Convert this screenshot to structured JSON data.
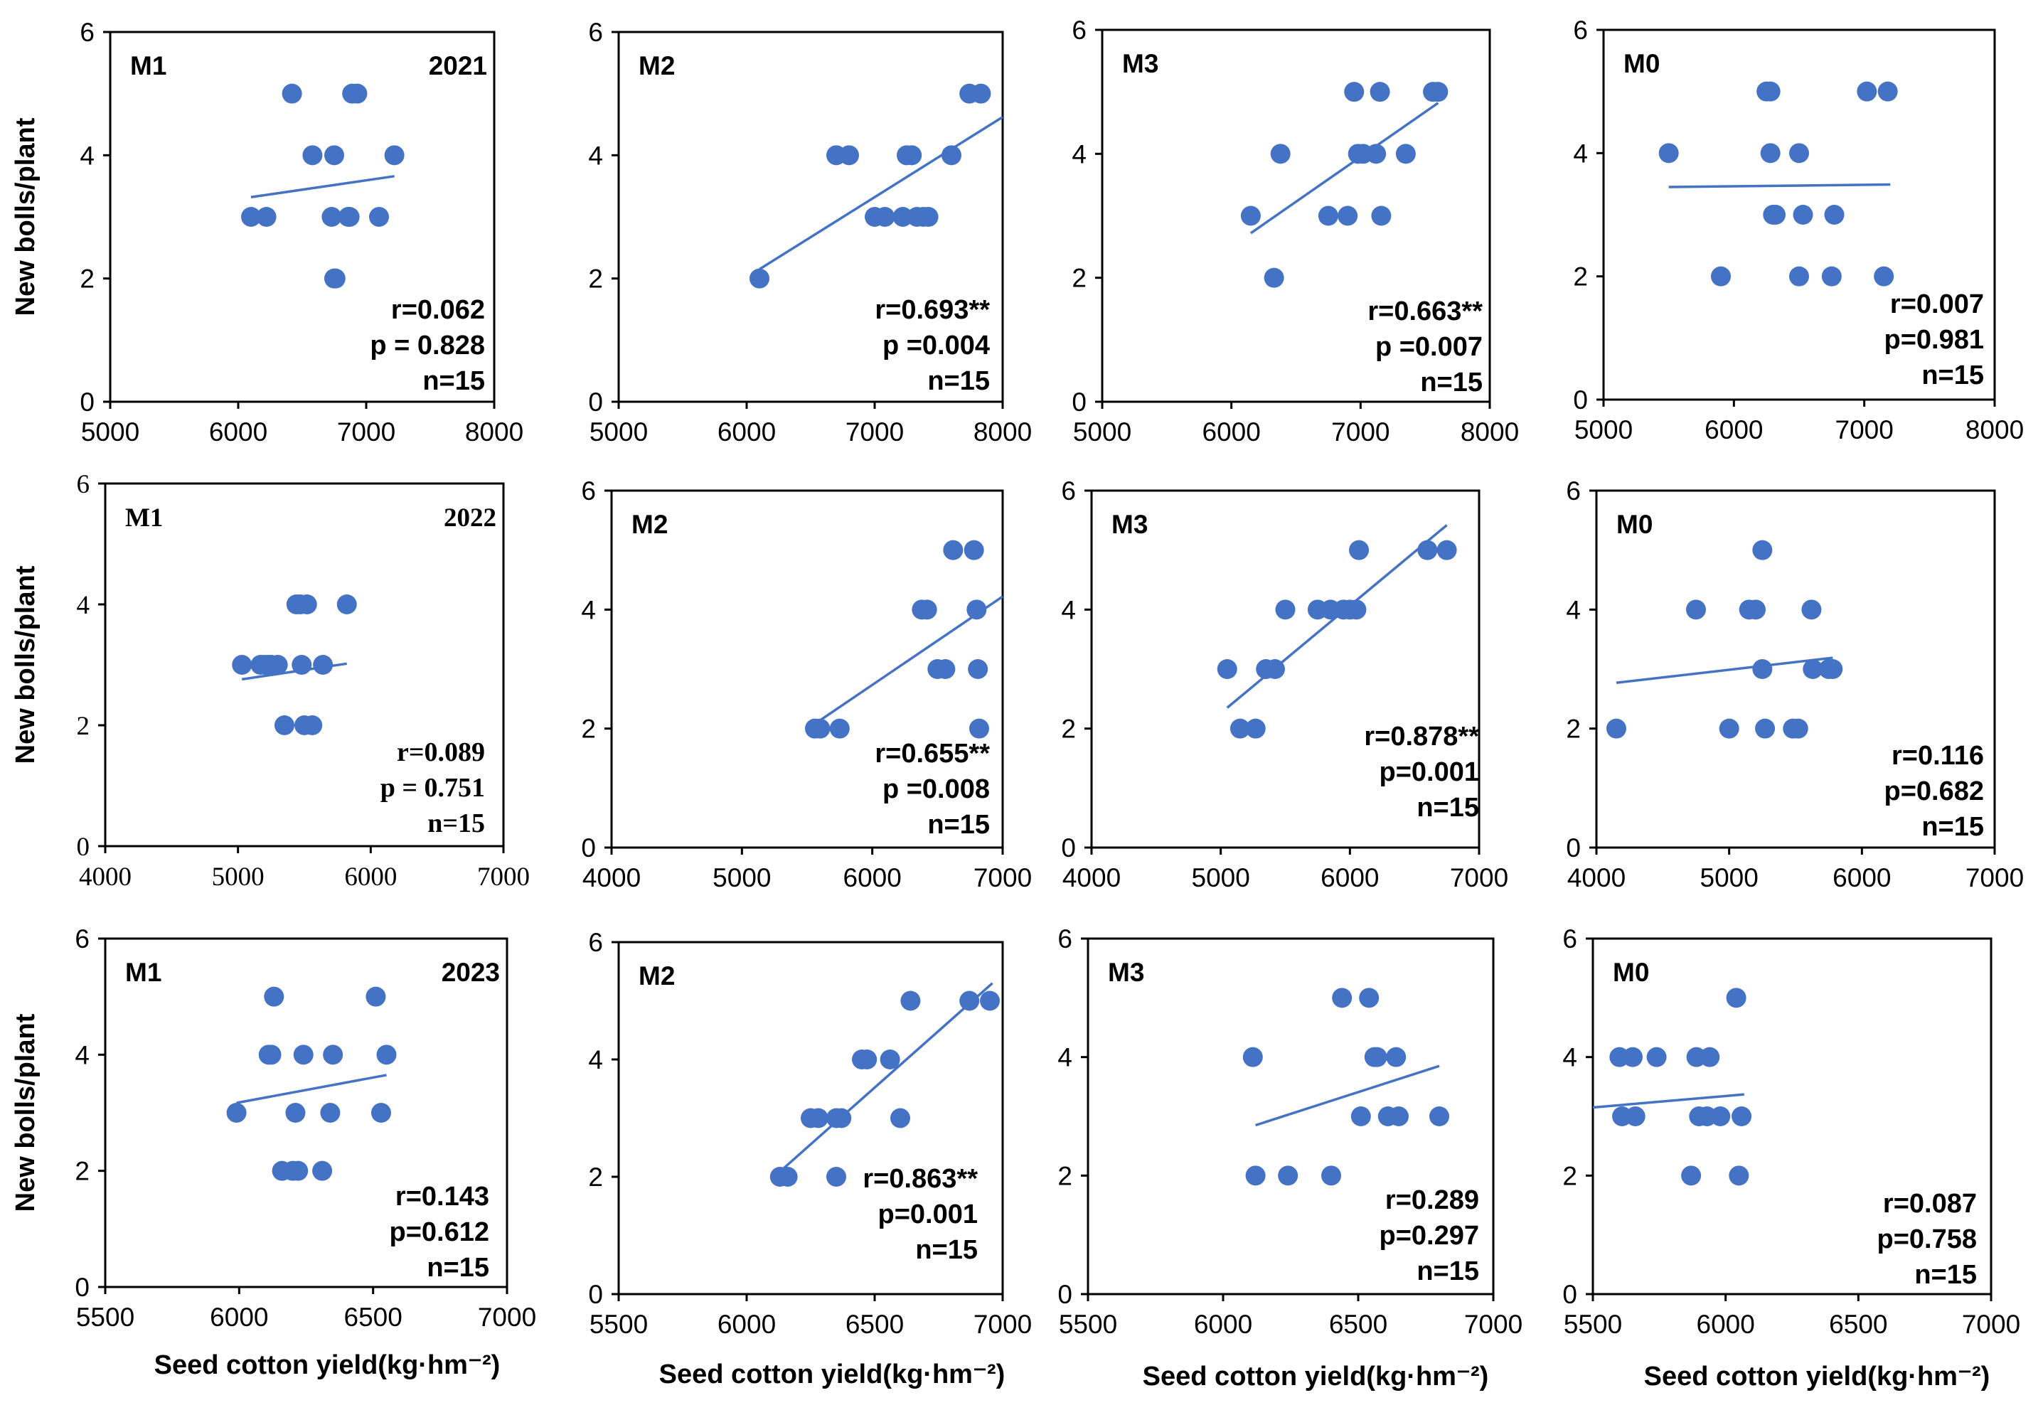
{
  "figure": {
    "ylabel": "New bolls/plant",
    "xlabel": "Seed cotton yield(kg·hm⁻²)"
  },
  "colors": {
    "point": "#4472C4",
    "line": "#4472C4",
    "axis": "#000000"
  },
  "chart_data": [
    {
      "type": "scatter",
      "title": "M1",
      "year": "2021",
      "xlim": [
        5000,
        8000
      ],
      "xticks": [
        5000,
        6000,
        7000,
        8000
      ],
      "ylim": [
        0,
        6
      ],
      "yticks": [
        0,
        2,
        4,
        6
      ],
      "x": [
        6100,
        6220,
        6420,
        6580,
        6750,
        6730,
        6760,
        6870,
        6890,
        6930,
        6860,
        7100,
        7220,
        6750
      ],
      "y": [
        3,
        3,
        5,
        4,
        4,
        3,
        2,
        3,
        5,
        5,
        3,
        3,
        4,
        2
      ],
      "trend": {
        "x": [
          6100,
          7220
        ],
        "y": [
          3.32,
          3.66
        ]
      },
      "stats": [
        "r=0.062",
        "p = 0.828",
        "n=15"
      ]
    },
    {
      "type": "scatter",
      "title": "M2",
      "xlim": [
        5000,
        8000
      ],
      "xticks": [
        5000,
        6000,
        7000,
        8000
      ],
      "ylim": [
        0,
        6
      ],
      "yticks": [
        0,
        2,
        4,
        6
      ],
      "x": [
        6100,
        6700,
        6800,
        7000,
        7080,
        7220,
        7250,
        7290,
        7330,
        7380,
        7420,
        7600,
        7740,
        7830
      ],
      "y": [
        2,
        4,
        4,
        3,
        3,
        3,
        4,
        4,
        3,
        3,
        3,
        4,
        5,
        5
      ],
      "trend": {
        "x": [
          6100,
          8000
        ],
        "y": [
          2.15,
          4.62
        ]
      },
      "stats": [
        "r=0.693**",
        "p =0.004",
        "n=15"
      ]
    },
    {
      "type": "scatter",
      "title": "M3",
      "xlim": [
        5000,
        8000
      ],
      "xticks": [
        5000,
        6000,
        7000,
        8000
      ],
      "ylim": [
        0,
        6
      ],
      "yticks": [
        0,
        2,
        4,
        6
      ],
      "x": [
        6150,
        6330,
        6380,
        6750,
        6900,
        6950,
        6980,
        7020,
        7120,
        7150,
        7160,
        7350,
        7560,
        7600
      ],
      "y": [
        3,
        2,
        4,
        3,
        3,
        5,
        4,
        4,
        4,
        5,
        3,
        4,
        5,
        5
      ],
      "trend": {
        "x": [
          6150,
          7600
        ],
        "y": [
          2.72,
          4.82
        ]
      },
      "stats": [
        "r=0.663**",
        "p =0.007",
        "n=15"
      ]
    },
    {
      "type": "scatter",
      "title": "M0",
      "xlim": [
        5000,
        8000
      ],
      "xticks": [
        5000,
        6000,
        7000,
        8000
      ],
      "ylim": [
        0,
        6
      ],
      "yticks": [
        0,
        2,
        4,
        6
      ],
      "x": [
        5500,
        5900,
        6250,
        6280,
        6280,
        6300,
        6320,
        6500,
        6500,
        6530,
        6750,
        6770,
        7020,
        7150,
        7180
      ],
      "y": [
        4,
        2,
        5,
        5,
        4,
        3,
        3,
        2,
        4,
        3,
        2,
        3,
        5,
        2,
        5
      ],
      "trend": {
        "x": [
          5500,
          7200
        ],
        "y": [
          3.45,
          3.49
        ]
      },
      "stats": [
        "r=0.007",
        "p=0.981",
        "n=15"
      ]
    },
    {
      "type": "scatter",
      "title": "M1",
      "year": "2022",
      "font": "serif",
      "xlim": [
        4000,
        7000
      ],
      "xticks": [
        4000,
        5000,
        6000,
        7000
      ],
      "ylim": [
        0,
        6
      ],
      "yticks": [
        0,
        2,
        4,
        6
      ],
      "x": [
        5030,
        5170,
        5200,
        5230,
        5250,
        5300,
        5350,
        5440,
        5470,
        5480,
        5500,
        5520,
        5560,
        5640,
        5820
      ],
      "y": [
        3,
        3,
        3,
        3,
        3,
        3,
        2,
        4,
        4,
        3,
        2,
        4,
        2,
        3,
        4
      ],
      "trend": {
        "x": [
          5030,
          5820
        ],
        "y": [
          2.76,
          3.02
        ]
      },
      "stats": [
        "r=0.089",
        "p = 0.751",
        "n=15"
      ]
    },
    {
      "type": "scatter",
      "title": "M2",
      "xlim": [
        4000,
        7000
      ],
      "xticks": [
        4000,
        5000,
        6000,
        7000
      ],
      "ylim": [
        0,
        6
      ],
      "yticks": [
        0,
        2,
        4,
        6
      ],
      "x": [
        5560,
        5600,
        5750,
        6380,
        6420,
        6500,
        6560,
        6620,
        6780,
        6800,
        6810,
        6820
      ],
      "y": [
        2,
        2,
        2,
        4,
        4,
        3,
        3,
        5,
        5,
        4,
        3,
        2
      ],
      "trend": {
        "x": [
          5560,
          7000
        ],
        "y": [
          2.08,
          4.22
        ]
      },
      "stats": [
        "r=0.655**",
        "p =0.008",
        "n=15"
      ]
    },
    {
      "type": "scatter",
      "title": "M3",
      "xlim": [
        4000,
        7000
      ],
      "xticks": [
        4000,
        5000,
        6000,
        7000
      ],
      "ylim": [
        0,
        6
      ],
      "yticks": [
        0,
        2,
        4,
        6
      ],
      "x": [
        5050,
        5150,
        5270,
        5350,
        5420,
        5500,
        5750,
        5850,
        5950,
        6000,
        6050,
        6070,
        6600,
        6750
      ],
      "y": [
        3,
        2,
        2,
        3,
        3,
        4,
        4,
        4,
        4,
        4,
        4,
        5,
        5,
        5
      ],
      "trend": {
        "x": [
          5050,
          6750
        ],
        "y": [
          2.35,
          5.42
        ]
      },
      "stats": [
        "r=0.878**",
        "p=0.001",
        "n=15"
      ]
    },
    {
      "type": "scatter",
      "title": "M0",
      "xlim": [
        4000,
        7000
      ],
      "xticks": [
        4000,
        5000,
        6000,
        7000
      ],
      "ylim": [
        0,
        6
      ],
      "yticks": [
        0,
        2,
        4,
        6
      ],
      "x": [
        4150,
        4750,
        5000,
        5150,
        5200,
        5250,
        5250,
        5270,
        5480,
        5520,
        5620,
        5630,
        5750,
        5780
      ],
      "y": [
        2,
        4,
        2,
        4,
        4,
        3,
        5,
        2,
        2,
        2,
        4,
        3,
        3,
        3
      ],
      "trend": {
        "x": [
          4150,
          5780
        ],
        "y": [
          2.77,
          3.19
        ]
      },
      "stats": [
        "r=0.116",
        "p=0.682",
        "n=15"
      ]
    },
    {
      "type": "scatter",
      "title": "M1",
      "year": "2023",
      "xlim": [
        5500,
        7000
      ],
      "xticks": [
        5500,
        6000,
        6500,
        7000
      ],
      "ylim": [
        0,
        6
      ],
      "yticks": [
        0,
        2,
        4,
        6
      ],
      "x": [
        5990,
        6110,
        6120,
        6130,
        6160,
        6200,
        6210,
        6220,
        6240,
        6310,
        6340,
        6350,
        6510,
        6530,
        6550
      ],
      "y": [
        3,
        4,
        4,
        5,
        2,
        2,
        3,
        2,
        4,
        2,
        3,
        4,
        5,
        3,
        4
      ],
      "trend": {
        "x": [
          5990,
          6550
        ],
        "y": [
          3.17,
          3.65
        ]
      },
      "stats": [
        "r=0.143",
        "p=0.612",
        "n=15"
      ]
    },
    {
      "type": "scatter",
      "title": "M2",
      "xlim": [
        5500,
        7000
      ],
      "xticks": [
        5500,
        6000,
        6500,
        7000
      ],
      "ylim": [
        0,
        6
      ],
      "yticks": [
        0,
        2,
        4,
        6
      ],
      "x": [
        6130,
        6160,
        6250,
        6280,
        6350,
        6370,
        6450,
        6470,
        6560,
        6600,
        6640,
        6870,
        6950,
        6350
      ],
      "y": [
        2,
        2,
        3,
        3,
        3,
        3,
        4,
        4,
        4,
        3,
        5,
        5,
        5,
        2
      ],
      "trend": {
        "x": [
          6120,
          6960
        ],
        "y": [
          2.05,
          5.3
        ]
      },
      "stats": [
        "r=0.863**",
        "p=0.001",
        "n=15"
      ]
    },
    {
      "type": "scatter",
      "title": "M3",
      "xlim": [
        5500,
        7000
      ],
      "xticks": [
        5500,
        6000,
        6500,
        7000
      ],
      "ylim": [
        0,
        6
      ],
      "yticks": [
        0,
        2,
        4,
        6
      ],
      "x": [
        6110,
        6120,
        6240,
        6400,
        6440,
        6510,
        6540,
        6560,
        6570,
        6610,
        6640,
        6650,
        6800
      ],
      "y": [
        4,
        2,
        2,
        2,
        5,
        3,
        5,
        4,
        4,
        3,
        4,
        3,
        3
      ],
      "trend": {
        "x": [
          6120,
          6800
        ],
        "y": [
          2.85,
          3.85
        ]
      },
      "stats": [
        "r=0.289",
        "p=0.297",
        "n=15"
      ]
    },
    {
      "type": "scatter",
      "title": "M0",
      "xlim": [
        5500,
        7000
      ],
      "xticks": [
        5500,
        6000,
        6500,
        7000
      ],
      "ylim": [
        0,
        6
      ],
      "yticks": [
        0,
        2,
        4,
        6
      ],
      "x": [
        5600,
        5610,
        5650,
        5660,
        5740,
        5870,
        5890,
        5900,
        5930,
        5940,
        5980,
        6040,
        6050,
        6060
      ],
      "y": [
        4,
        3,
        4,
        3,
        4,
        2,
        4,
        3,
        3,
        4,
        3,
        5,
        2,
        3
      ],
      "trend": {
        "x": [
          5500,
          6070
        ],
        "y": [
          3.15,
          3.37
        ]
      },
      "stats": [
        "r=0.087",
        "p=0.758",
        "n=15"
      ]
    }
  ]
}
